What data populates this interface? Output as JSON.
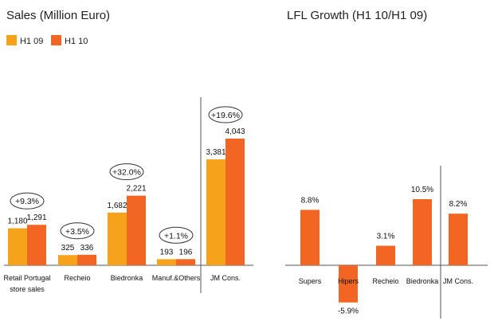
{
  "colors": {
    "h1_09": "#F7A21B",
    "h1_10": "#F26522",
    "lfl": "#F26522",
    "axis": "#555555"
  },
  "chart_data": [
    {
      "type": "bar",
      "title": "Sales (Million Euro)",
      "legend": [
        "H1 09",
        "H1 10"
      ],
      "categories": [
        {
          "label": "Retail Portugal",
          "label2": "store sales",
          "growth": "+9.3%",
          "values": [
            "1,180",
            "1,291"
          ],
          "nums": [
            1180,
            1291
          ]
        },
        {
          "label": "Recheio",
          "label2": "",
          "growth": "+3.5%",
          "values": [
            "325",
            "336"
          ],
          "nums": [
            325,
            336
          ]
        },
        {
          "label": "Biedronka",
          "label2": "",
          "growth": "+32.0%",
          "values": [
            "1,682",
            "2,221"
          ],
          "nums": [
            1682,
            2221
          ]
        },
        {
          "label": "Manuf.&Others",
          "label2": "",
          "growth": "+1.1%",
          "values": [
            "193",
            "196"
          ],
          "nums": [
            193,
            196
          ]
        },
        {
          "label": "JM Cons.",
          "label2": "",
          "growth": "+19.6%",
          "values": [
            "3,381",
            "4,043"
          ],
          "nums": [
            3381,
            4043
          ]
        }
      ],
      "ylim": [
        0,
        4700
      ]
    },
    {
      "type": "bar",
      "title": "LFL Growth (H1 10/H1 09)",
      "categories": [
        {
          "label": "Supers",
          "value": 8.8,
          "display": "8.8%"
        },
        {
          "label": "Hipers",
          "value": -5.9,
          "display": "-5.9%"
        },
        {
          "label": "Recheio",
          "value": 3.1,
          "display": "3.1%"
        },
        {
          "label": "Biedronka",
          "value": 10.5,
          "display": "10.5%"
        },
        {
          "label": "JM Cons.",
          "value": 8.2,
          "display": "8.2%"
        }
      ],
      "ylim": [
        -6.5,
        12
      ]
    }
  ]
}
